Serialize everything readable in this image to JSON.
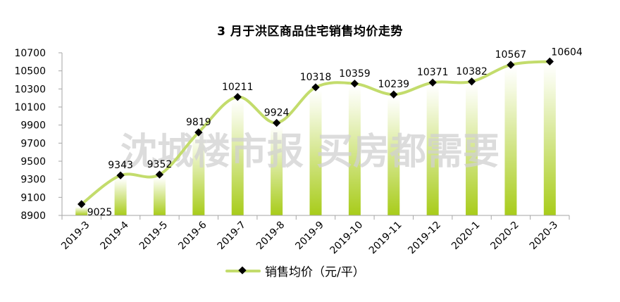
{
  "title": "3 月于洪区商品住宅销售均价走势",
  "watermark": "沈城楼市报 买房都需要",
  "legend": {
    "label": "销售均价（元/平）",
    "marker": "diamond-on-line"
  },
  "colors": {
    "line": "#c3dc6c",
    "bar_bottom": "#a8cc1a",
    "bar_top": "#ffffff",
    "marker": "#000000",
    "axis": "#a6a6a6",
    "watermark": "#d9d9d9"
  },
  "chart_data": {
    "type": "line",
    "title": "3 月于洪区商品住宅销售均价走势",
    "categories": [
      "2019-3",
      "2019-4",
      "2019-5",
      "2019-6",
      "2019-7",
      "2019-8",
      "2019-9",
      "2019-10",
      "2019-11",
      "2019-12",
      "2020-1",
      "2020-2",
      "2020-3"
    ],
    "series": [
      {
        "name": "销售均价（元/平）",
        "values": [
          9025,
          9343,
          9352,
          9819,
          10211,
          9924,
          10318,
          10359,
          10239,
          10371,
          10382,
          10567,
          10604
        ]
      }
    ],
    "bars_decorative": [
      9025,
      9343,
      9352,
      9819,
      10211,
      9924,
      10318,
      10359,
      10239,
      10371,
      10382,
      10567,
      10604
    ],
    "xlabel": "",
    "ylabel": "",
    "ylim": [
      8900,
      10700
    ],
    "yticks": [
      8900,
      9100,
      9300,
      9500,
      9700,
      9900,
      10100,
      10300,
      10500,
      10700
    ],
    "grid": false,
    "smooth": true,
    "data_labels": true,
    "legend_position": "bottom"
  }
}
